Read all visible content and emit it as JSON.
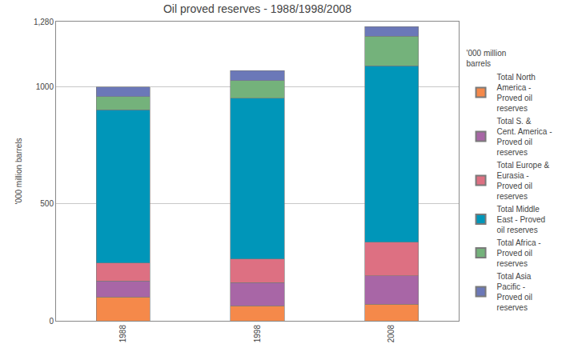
{
  "chart_data": {
    "type": "bar",
    "title": "Oil proved reserves - 1988/1998/2008",
    "y_label": "'000 million barrels",
    "legend_title": "'000 million barrels",
    "categories": [
      "1988",
      "1998",
      "2008"
    ],
    "stacked": true,
    "grid": true,
    "legend": "right",
    "ylim": [
      0,
      1280
    ],
    "yticks": [
      0,
      500,
      1000,
      {
        "value": 1280,
        "label": "1,280"
      }
    ],
    "series": [
      {
        "name": "Total North America - Proved oil reserves",
        "color": "#f5894a",
        "values": [
          102,
          64,
          71
        ]
      },
      {
        "name": "Total S. & Cent. America - Proved oil reserves",
        "color": "#a866a6",
        "values": [
          68,
          99,
          122
        ]
      },
      {
        "name": "Total Europe & Eurasia - Proved oil reserves",
        "color": "#dd7082",
        "values": [
          78,
          101,
          143
        ]
      },
      {
        "name": "Total Middle East - Proved oil reserves",
        "color": "#0096b9",
        "values": [
          655,
          689,
          755
        ]
      },
      {
        "name": "Total Africa - Proved oil reserves",
        "color": "#74b27b",
        "values": [
          57,
          74,
          126
        ]
      },
      {
        "name": "Total Asia Pacific - Proved oil reserves",
        "color": "#6b78b8",
        "values": [
          41,
          44,
          41
        ]
      }
    ]
  }
}
